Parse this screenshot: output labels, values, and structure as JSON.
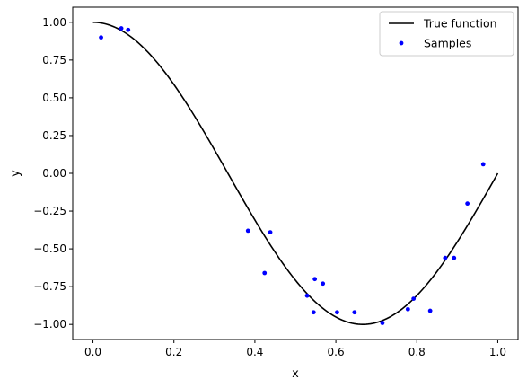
{
  "chart_data": {
    "type": "line",
    "xlabel": "x",
    "ylabel": "y",
    "xlim": [
      -0.05,
      1.05
    ],
    "ylim": [
      -1.1,
      1.1
    ],
    "x_ticks": [
      0.0,
      0.2,
      0.4,
      0.6,
      0.8,
      1.0
    ],
    "x_tick_labels": [
      "0.0",
      "0.2",
      "0.4",
      "0.6",
      "0.8",
      "1.0"
    ],
    "y_ticks": [
      -1.0,
      -0.75,
      -0.5,
      -0.25,
      0.0,
      0.25,
      0.5,
      0.75,
      1.0
    ],
    "y_tick_labels": [
      "−1.00",
      "−0.75",
      "−0.50",
      "−0.25",
      "0.00",
      "0.25",
      "0.50",
      "0.75",
      "1.00"
    ],
    "grid": false,
    "legend_position": "top-right",
    "series": [
      {
        "name": "True function",
        "kind": "line",
        "color": "#000000",
        "function": "cos(1.5*pi*x)",
        "x_range": [
          0.0,
          1.0
        ]
      },
      {
        "name": "Samples",
        "kind": "scatter",
        "color": "#0000ff",
        "points": [
          [
            0.02,
            0.9
          ],
          [
            0.07,
            0.96
          ],
          [
            0.087,
            0.95
          ],
          [
            0.383,
            -0.38
          ],
          [
            0.424,
            -0.66
          ],
          [
            0.438,
            -0.39
          ],
          [
            0.529,
            -0.81
          ],
          [
            0.545,
            -0.92
          ],
          [
            0.548,
            -0.7
          ],
          [
            0.568,
            -0.73
          ],
          [
            0.603,
            -0.92
          ],
          [
            0.646,
            -0.92
          ],
          [
            0.715,
            -0.99
          ],
          [
            0.778,
            -0.9
          ],
          [
            0.792,
            -0.83
          ],
          [
            0.833,
            -0.91
          ],
          [
            0.87,
            -0.56
          ],
          [
            0.892,
            -0.56
          ],
          [
            0.925,
            -0.2
          ],
          [
            0.964,
            0.06
          ]
        ]
      }
    ]
  }
}
